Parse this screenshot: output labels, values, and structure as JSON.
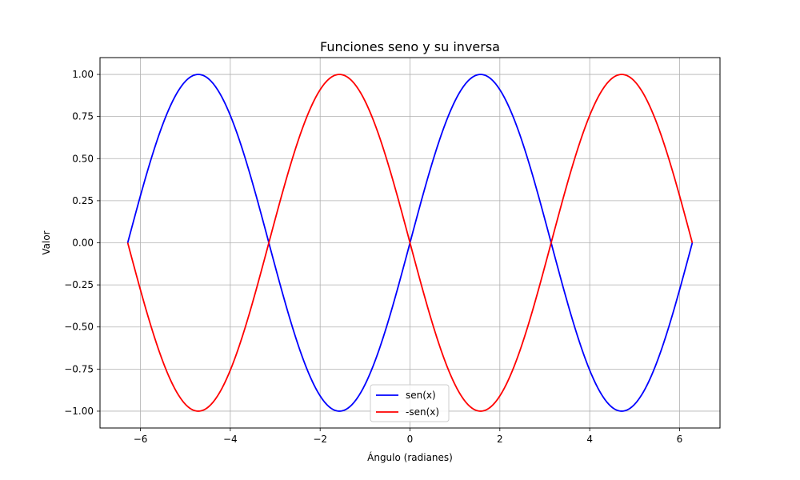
{
  "chart_data": {
    "type": "line",
    "title": "Funciones seno y su inversa",
    "xlabel": "Ángulo (radianes)",
    "ylabel": "Valor",
    "xlim": [
      -6.9,
      6.9
    ],
    "ylim": [
      -1.1,
      1.1
    ],
    "grid": true,
    "legend_position": "bottom-center",
    "x_ticks": [
      -6,
      -4,
      -2,
      0,
      2,
      4,
      6
    ],
    "x_tick_labels": [
      "−6",
      "−4",
      "−2",
      "0",
      "2",
      "4",
      "6"
    ],
    "y_ticks": [
      -1.0,
      -0.75,
      -0.5,
      -0.25,
      0.0,
      0.25,
      0.5,
      0.75,
      1.0
    ],
    "y_tick_labels": [
      "−1.00",
      "−0.75",
      "−0.50",
      "−0.25",
      "0.00",
      "0.25",
      "0.50",
      "0.75",
      "1.00"
    ],
    "x": [
      -6.2832,
      -6.0,
      -5.5,
      -5.0,
      -4.7124,
      -4.5,
      -4.0,
      -3.5,
      -3.1416,
      -3.0,
      -2.5,
      -2.0,
      -1.5708,
      -1.0,
      -0.5,
      0.0,
      0.5,
      1.0,
      1.5708,
      2.0,
      2.5,
      3.0,
      3.1416,
      3.5,
      4.0,
      4.5,
      4.7124,
      5.0,
      5.5,
      6.0,
      6.2832
    ],
    "series": [
      {
        "name": "sen(x)",
        "color": "#0000ff",
        "values": [
          0.0,
          0.279,
          0.706,
          0.959,
          1.0,
          0.978,
          0.757,
          0.351,
          0.0,
          -0.141,
          -0.598,
          -0.909,
          -1.0,
          -0.841,
          -0.479,
          0.0,
          0.479,
          0.841,
          1.0,
          0.909,
          0.598,
          0.141,
          0.0,
          -0.351,
          -0.757,
          -0.978,
          -1.0,
          -0.959,
          -0.706,
          -0.279,
          0.0
        ]
      },
      {
        "name": "-sen(x)",
        "color": "#ff0000",
        "values": [
          0.0,
          -0.279,
          -0.706,
          -0.959,
          -1.0,
          -0.978,
          -0.757,
          -0.351,
          0.0,
          0.141,
          0.598,
          0.909,
          1.0,
          0.841,
          0.479,
          0.0,
          -0.479,
          -0.841,
          -1.0,
          -0.909,
          -0.598,
          -0.141,
          0.0,
          0.351,
          0.757,
          0.978,
          1.0,
          0.959,
          0.706,
          0.279,
          0.0
        ]
      }
    ]
  }
}
